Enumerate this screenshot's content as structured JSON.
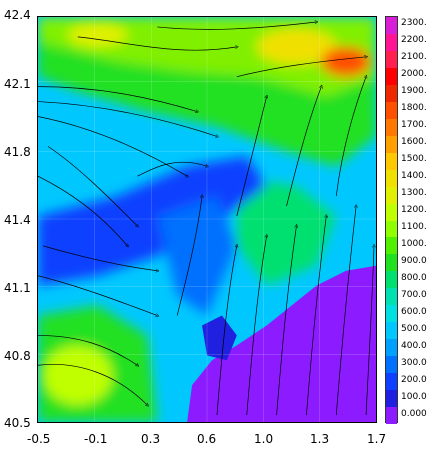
{
  "map": {
    "y_ticks": [
      "42.4",
      "42.1",
      "41.8",
      "41.4",
      "41.1",
      "40.8",
      "40.5"
    ],
    "x_ticks": [
      "-0.5",
      "-0.1",
      "0.3",
      "0.6",
      "1.0",
      "1.3",
      "1.7"
    ],
    "lon_range": [
      -0.5,
      1.7
    ],
    "lat_range": [
      40.5,
      42.4
    ],
    "content": "terrain elevation shaded with overlaid wind streamlines; sea shown in violet at lower right"
  },
  "legend": {
    "labels": [
      "2300.",
      "2200.",
      "2100.",
      "2000.",
      "1900.",
      "1800.",
      "1700.",
      "1600.",
      "1500.",
      "1400.",
      "1300.",
      "1200.",
      "1100.",
      "1000.",
      "900.0",
      "800.0",
      "700.0",
      "600.0",
      "500.0",
      "400.0",
      "300.0",
      "200.0",
      "100.0",
      "0.000"
    ],
    "colors": [
      "#d81fd8",
      "#ff1493",
      "#ff2050",
      "#ff0000",
      "#f02800",
      "#ff5000",
      "#ff7800",
      "#ffa000",
      "#ffc800",
      "#f0e000",
      "#e0f000",
      "#c0ff00",
      "#90ff00",
      "#50f000",
      "#20e020",
      "#00e070",
      "#00e0b0",
      "#00e0e0",
      "#00c8ff",
      "#00a0ff",
      "#0070ff",
      "#1040ff",
      "#2020e0",
      "#8c1cff"
    ]
  }
}
